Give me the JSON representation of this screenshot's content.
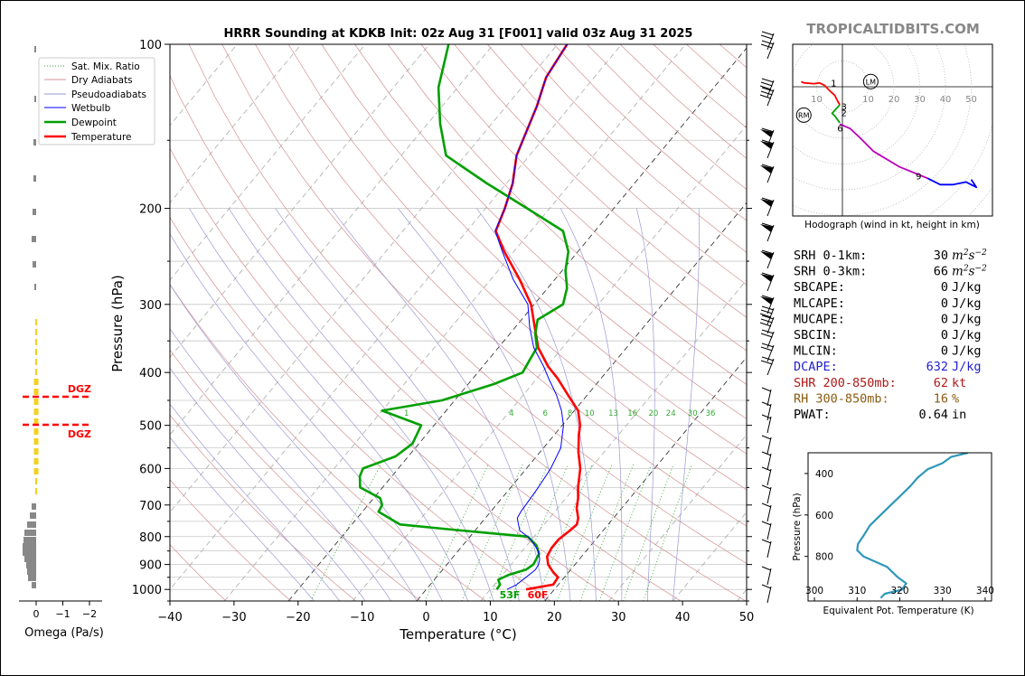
{
  "header": {
    "title": "HRRR Sounding at KDKB Init: 02z Aug 31 [F001] valid 03z Aug 31 2025",
    "watermark": "TROPICALTIDBITS.COM"
  },
  "chart_data": [
    {
      "type": "line",
      "subtype": "skew-t log-p",
      "xlabel": "Temperature (°C)",
      "ylabel": "Pressure (hPa)",
      "xlim": [
        -40,
        50
      ],
      "ylim": [
        1050,
        100
      ],
      "yscale": "log",
      "xticks": [
        "−40",
        "−30",
        "−20",
        "−10",
        "0",
        "10",
        "20",
        "30",
        "40",
        "50"
      ],
      "yticks": [
        "100",
        "200",
        "300",
        "400",
        "500",
        "600",
        "700",
        "800",
        "900",
        "1000"
      ],
      "grid": true,
      "legend_position": "upper-left",
      "legend": [
        "Sat. Mix. Ratio",
        "Dry Adiabats",
        "Pseudoadiabats",
        "Wetbulb",
        "Dewpoint",
        "Temperature"
      ],
      "mixing_ratio_labels": [
        "1",
        "4",
        "6",
        "8",
        "10",
        "13",
        "16",
        "20",
        "24",
        "30",
        "36"
      ],
      "surface_labels": {
        "dewpoint": "53F",
        "temperature": "60F"
      },
      "series": [
        {
          "name": "Temperature",
          "color": "#ff0000",
          "points": [
            [
              1000,
              15.6
            ],
            [
              980,
              19.2
            ],
            [
              950,
              19.0
            ],
            [
              930,
              17.6
            ],
            [
              900,
              15.8
            ],
            [
              870,
              14.6
            ],
            [
              840,
              14.2
            ],
            [
              810,
              14.2
            ],
            [
              780,
              14.8
            ],
            [
              760,
              15.1
            ],
            [
              740,
              14.5
            ],
            [
              710,
              13.0
            ],
            [
              680,
              11.9
            ],
            [
              650,
              10.5
            ],
            [
              600,
              8.4
            ],
            [
              560,
              6.0
            ],
            [
              520,
              3.8
            ],
            [
              500,
              2.8
            ],
            [
              470,
              0.6
            ],
            [
              440,
              -3.0
            ],
            [
              410,
              -6.8
            ],
            [
              390,
              -9.8
            ],
            [
              360,
              -13.8
            ],
            [
              330,
              -17.0
            ],
            [
              300,
              -20.5
            ],
            [
              270,
              -25.5
            ],
            [
              240,
              -31.5
            ],
            [
              220,
              -35.5
            ],
            [
              200,
              -37.0
            ],
            [
              180,
              -39.0
            ],
            [
              160,
              -42.0
            ],
            [
              150,
              -43.0
            ],
            [
              130,
              -45.2
            ],
            [
              115,
              -47.5
            ],
            [
              100,
              -48.5
            ]
          ]
        },
        {
          "name": "Dewpoint",
          "color": "#00a000",
          "points": [
            [
              1000,
              11.0
            ],
            [
              980,
              10.9
            ],
            [
              960,
              10.0
            ],
            [
              940,
              11.0
            ],
            [
              920,
              13.0
            ],
            [
              900,
              13.5
            ],
            [
              860,
              13.0
            ],
            [
              830,
              11.5
            ],
            [
              800,
              9.0
            ],
            [
              780,
              -2.0
            ],
            [
              760,
              -12.5
            ],
            [
              740,
              -15.0
            ],
            [
              720,
              -17.5
            ],
            [
              700,
              -17.8
            ],
            [
              680,
              -19.0
            ],
            [
              650,
              -23.5
            ],
            [
              620,
              -25.0
            ],
            [
              600,
              -25.5
            ],
            [
              570,
              -22.0
            ],
            [
              540,
              -21.0
            ],
            [
              500,
              -22.0
            ],
            [
              470,
              -30.0
            ],
            [
              450,
              -22.0
            ],
            [
              420,
              -16.0
            ],
            [
              400,
              -13.0
            ],
            [
              380,
              -13.5
            ],
            [
              360,
              -14.0
            ],
            [
              340,
              -16.0
            ],
            [
              320,
              -17.5
            ],
            [
              300,
              -15.5
            ],
            [
              280,
              -17.0
            ],
            [
              260,
              -19.5
            ],
            [
              240,
              -21.5
            ],
            [
              220,
              -25.0
            ],
            [
              200,
              -33.5
            ],
            [
              180,
              -43.0
            ],
            [
              160,
              -53.0
            ],
            [
              140,
              -58.0
            ],
            [
              120,
              -63.0
            ],
            [
              100,
              -67.0
            ]
          ]
        },
        {
          "name": "Wetbulb",
          "color": "#0000ff",
          "points": [
            [
              1000,
              12.6
            ],
            [
              980,
              13.5
            ],
            [
              950,
              14.0
            ],
            [
              920,
              14.5
            ],
            [
              900,
              14.3
            ],
            [
              880,
              13.8
            ],
            [
              850,
              12.5
            ],
            [
              820,
              10.6
            ],
            [
              800,
              9.0
            ],
            [
              780,
              7.0
            ],
            [
              760,
              6.0
            ],
            [
              740,
              5.0
            ],
            [
              720,
              4.7
            ],
            [
              700,
              4.6
            ],
            [
              650,
              4.3
            ],
            [
              600,
              3.8
            ],
            [
              550,
              2.7
            ],
            [
              500,
              0.2
            ],
            [
              470,
              -2.0
            ],
            [
              440,
              -4.8
            ],
            [
              410,
              -8.2
            ],
            [
              390,
              -10.5
            ],
            [
              360,
              -14.5
            ],
            [
              330,
              -17.8
            ],
            [
              300,
              -21.0
            ],
            [
              270,
              -26.5
            ],
            [
              240,
              -31.8
            ],
            [
              220,
              -35.6
            ],
            [
              200,
              -37.0
            ],
            [
              180,
              -39.0
            ],
            [
              160,
              -42.0
            ],
            [
              150,
              -43.0
            ],
            [
              130,
              -45.2
            ],
            [
              115,
              -47.5
            ],
            [
              100,
              -48.5
            ]
          ]
        }
      ]
    },
    {
      "type": "line",
      "subtype": "omega profile",
      "xlabel": "Omega (Pa/s)",
      "xticks": [
        "0",
        "−1",
        "−2"
      ],
      "dgz_label": "DGZ"
    },
    {
      "type": "line",
      "subtype": "hodograph",
      "xlabel": "Hodograph (wind in kt, height in km)",
      "ring_labels": [
        "10",
        "10",
        "20",
        "30",
        "40",
        "50"
      ],
      "height_labels": [
        "1",
        "3",
        "2",
        "6",
        "9"
      ],
      "markers": [
        "LM",
        "RM"
      ],
      "segments": [
        {
          "color": "#ff0000",
          "points": [
            [
              -16,
              2
            ],
            [
              -15,
              1.5
            ],
            [
              -11,
              1.2
            ],
            [
              -9,
              1.5
            ],
            [
              -7,
              0.6
            ],
            [
              -5,
              -1.5
            ],
            [
              -3,
              -3.3
            ],
            [
              -2,
              -5.3
            ],
            [
              -1,
              -7
            ]
          ]
        },
        {
          "color": "#00a000",
          "points": [
            [
              -1,
              -7
            ],
            [
              -4,
              -10.3
            ],
            [
              -3,
              -11.3
            ],
            [
              -1,
              -14
            ]
          ]
        },
        {
          "color": "#bb00bb",
          "points": [
            [
              -1,
              -14.5
            ],
            [
              3,
              -16.2
            ],
            [
              7,
              -20
            ],
            [
              12,
              -25
            ],
            [
              22,
              -31
            ],
            [
              33,
              -35.5
            ]
          ]
        },
        {
          "color": "#0000ff",
          "points": [
            [
              33,
              -35.5
            ],
            [
              38,
              -38
            ],
            [
              43,
              -38
            ],
            [
              48,
              -37
            ],
            [
              52,
              -39
            ],
            [
              50,
              -36
            ]
          ]
        }
      ]
    },
    {
      "type": "line",
      "subtype": "theta-e profile",
      "xlabel": "Equivalent Pot. Temperature (K)",
      "ylabel": "Pressure (hPa)",
      "xticks": [
        "300",
        "310",
        "320",
        "330",
        "340"
      ],
      "yticks": [
        "400",
        "600",
        "800"
      ],
      "color": "#2f98b8",
      "points": [
        [
          1000,
          315.5
        ],
        [
          980,
          316.5
        ],
        [
          960,
          320.5
        ],
        [
          930,
          321.5
        ],
        [
          900,
          319.5
        ],
        [
          850,
          317
        ],
        [
          800,
          311.5
        ],
        [
          770,
          310
        ],
        [
          740,
          310.2
        ],
        [
          700,
          311.5
        ],
        [
          650,
          313
        ],
        [
          600,
          315.5
        ],
        [
          550,
          318
        ],
        [
          500,
          320.5
        ],
        [
          460,
          322.5
        ],
        [
          420,
          324.2
        ],
        [
          380,
          326.5
        ],
        [
          350,
          330
        ],
        [
          320,
          332
        ],
        [
          300,
          336
        ]
      ]
    }
  ],
  "stats": [
    {
      "label": "SRH 0-1km:",
      "value": "30",
      "unit": "m2s-2",
      "color": "#000000"
    },
    {
      "label": "SRH 0-3km:",
      "value": "66",
      "unit": "m2s-2",
      "color": "#000000"
    },
    {
      "label": "SBCAPE:",
      "value": "0",
      "unit": "J/kg",
      "color": "#000000"
    },
    {
      "label": "MLCAPE:",
      "value": "0",
      "unit": "J/kg",
      "color": "#000000"
    },
    {
      "label": "MUCAPE:",
      "value": "0",
      "unit": "J/kg",
      "color": "#000000"
    },
    {
      "label": "SBCIN:",
      "value": "0",
      "unit": "J/kg",
      "color": "#000000"
    },
    {
      "label": "MLCIN:",
      "value": "0",
      "unit": "J/kg",
      "color": "#000000"
    },
    {
      "label": "DCAPE:",
      "value": "632",
      "unit": "J/kg",
      "color": "#2020d0"
    },
    {
      "label": "SHR 200-850mb:",
      "value": "62",
      "unit": "kt",
      "color": "#b01818"
    },
    {
      "label": "RH 300-850mb:",
      "value": "16",
      "unit": "%",
      "color": "#8a5a10"
    },
    {
      "label": "PWAT:",
      "value": "0.64",
      "unit": "in",
      "color": "#000000"
    }
  ]
}
